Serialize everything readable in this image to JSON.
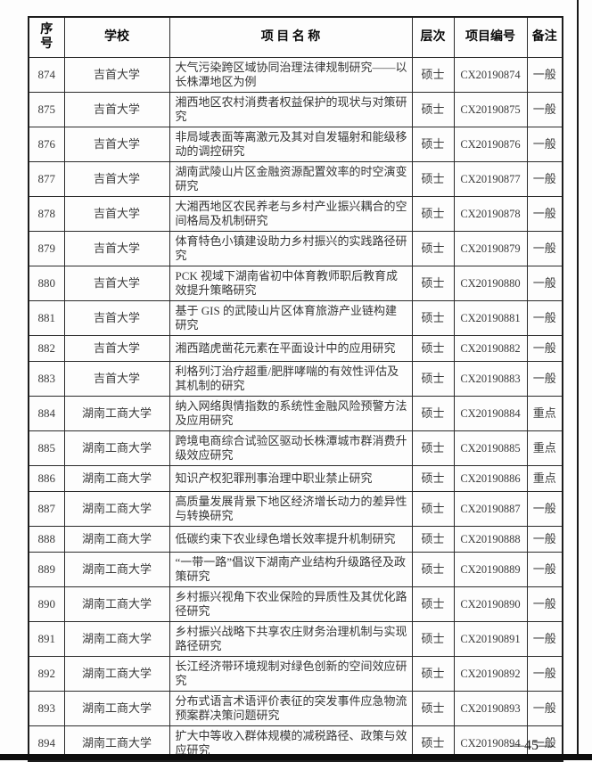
{
  "page": {
    "page_number": "—45—"
  },
  "table": {
    "headers": [
      {
        "key": "index",
        "label": "序\n号"
      },
      {
        "key": "school",
        "label": "学校"
      },
      {
        "key": "project",
        "label": "项 目 名 称"
      },
      {
        "key": "level",
        "label": "层次"
      },
      {
        "key": "code",
        "label": "项目编号"
      },
      {
        "key": "note",
        "label": "备注"
      }
    ],
    "rows": [
      {
        "index": "874",
        "school": "吉首大学",
        "project": "大气污染跨区域协同治理法律规制研究——以长株潭地区为例",
        "level": "硕士",
        "code": "CX20190874",
        "note": "一般"
      },
      {
        "index": "875",
        "school": "吉首大学",
        "project": "湘西地区农村消费者权益保护的现状与对策研究",
        "level": "硕士",
        "code": "CX20190875",
        "note": "一般"
      },
      {
        "index": "876",
        "school": "吉首大学",
        "project": "非局域表面等离激元及其对自发辐射和能级移动的调控研究",
        "level": "硕士",
        "code": "CX20190876",
        "note": "一般"
      },
      {
        "index": "877",
        "school": "吉首大学",
        "project": "湖南武陵山片区金融资源配置效率的时空演变研究",
        "level": "硕士",
        "code": "CX20190877",
        "note": "一般"
      },
      {
        "index": "878",
        "school": "吉首大学",
        "project": "大湘西地区农民养老与乡村产业振兴耦合的空间格局及机制研究",
        "level": "硕士",
        "code": "CX20190878",
        "note": "一般"
      },
      {
        "index": "879",
        "school": "吉首大学",
        "project": "体育特色小镇建设助力乡村振兴的实践路径研究",
        "level": "硕士",
        "code": "CX20190879",
        "note": "一般"
      },
      {
        "index": "880",
        "school": "吉首大学",
        "project": "PCK 视域下湖南省初中体育教师职后教育成效提升策略研究",
        "level": "硕士",
        "code": "CX20190880",
        "note": "一般"
      },
      {
        "index": "881",
        "school": "吉首大学",
        "project": "基于 GIS 的武陵山片区体育旅游产业链构建研究",
        "level": "硕士",
        "code": "CX20190881",
        "note": "一般"
      },
      {
        "index": "882",
        "school": "吉首大学",
        "project": "湘西踏虎凿花元素在平面设计中的应用研究",
        "level": "硕士",
        "code": "CX20190882",
        "note": "一般"
      },
      {
        "index": "883",
        "school": "吉首大学",
        "project": "利格列汀治疗超重/肥胖哮喘的有效性评估及其机制的研究",
        "level": "硕士",
        "code": "CX20190883",
        "note": "一般"
      },
      {
        "index": "884",
        "school": "湖南工商大学",
        "project": "纳入网络舆情指数的系统性金融风险预警方法及应用研究",
        "level": "硕士",
        "code": "CX20190884",
        "note": "重点"
      },
      {
        "index": "885",
        "school": "湖南工商大学",
        "project": "跨境电商综合试验区驱动长株潭城市群消费升级效应研究",
        "level": "硕士",
        "code": "CX20190885",
        "note": "重点"
      },
      {
        "index": "886",
        "school": "湖南工商大学",
        "project": "知识产权犯罪刑事治理中职业禁止研究",
        "level": "硕士",
        "code": "CX20190886",
        "note": "重点"
      },
      {
        "index": "887",
        "school": "湖南工商大学",
        "project": "高质量发展背景下地区经济增长动力的差异性与转换研究",
        "level": "硕士",
        "code": "CX20190887",
        "note": "一般"
      },
      {
        "index": "888",
        "school": "湖南工商大学",
        "project": "低碳约束下农业绿色增长效率提升机制研究",
        "level": "硕士",
        "code": "CX20190888",
        "note": "一般"
      },
      {
        "index": "889",
        "school": "湖南工商大学",
        "project": "“一带一路”倡议下湖南产业结构升级路径及政策研究",
        "level": "硕士",
        "code": "CX20190889",
        "note": "一般"
      },
      {
        "index": "890",
        "school": "湖南工商大学",
        "project": "乡村振兴视角下农业保险的异质性及其优化路径研究",
        "level": "硕士",
        "code": "CX20190890",
        "note": "一般"
      },
      {
        "index": "891",
        "school": "湖南工商大学",
        "project": "乡村振兴战略下共享农庄财务治理机制与实现路径研究",
        "level": "硕士",
        "code": "CX20190891",
        "note": "一般"
      },
      {
        "index": "892",
        "school": "湖南工商大学",
        "project": "长江经济带环境规制对绿色创新的空间效应研究",
        "level": "硕士",
        "code": "CX20190892",
        "note": "一般"
      },
      {
        "index": "893",
        "school": "湖南工商大学",
        "project": "分布式语言术语评价表征的突发事件应急物流预案群决策问题研究",
        "level": "硕士",
        "code": "CX20190893",
        "note": "一般"
      },
      {
        "index": "894",
        "school": "湖南工商大学",
        "project": "扩大中等收入群体规模的减税路径、政策与效应研究",
        "level": "硕士",
        "code": "CX20190894",
        "note": "一般"
      }
    ]
  }
}
